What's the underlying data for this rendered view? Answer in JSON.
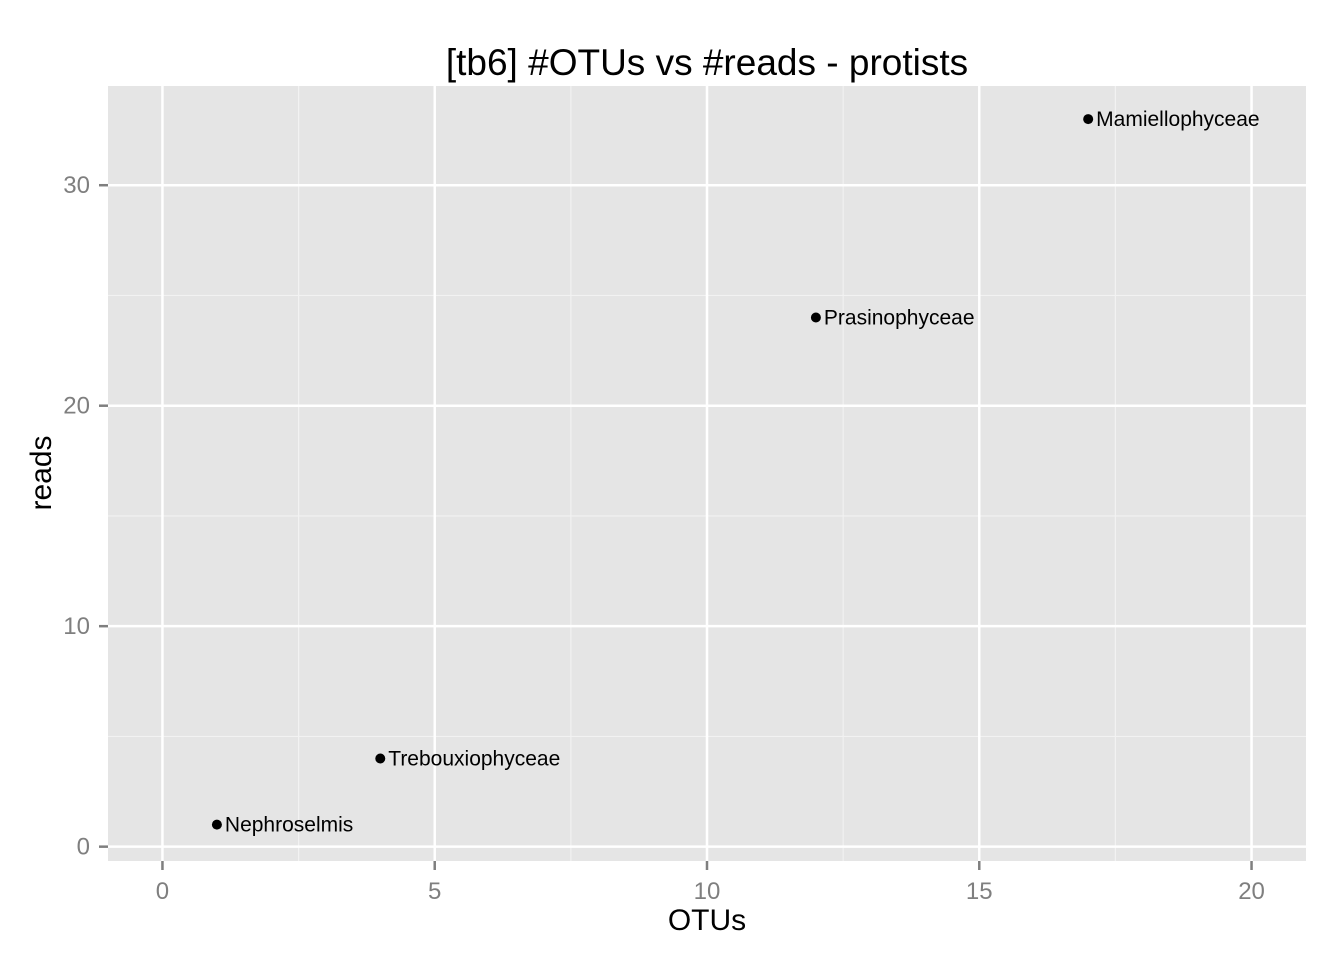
{
  "chart_data": {
    "type": "scatter",
    "title": "[tb6] #OTUs vs #reads - protists",
    "xlabel": "OTUs",
    "ylabel": "reads",
    "xlim": [
      -1,
      21
    ],
    "ylim": [
      -0.65,
      34.5
    ],
    "x_ticks": [
      0,
      5,
      10,
      15,
      20
    ],
    "y_ticks": [
      0,
      10,
      20,
      30
    ],
    "x_tick_labels": [
      "0",
      "5",
      "10",
      "15",
      "20"
    ],
    "y_tick_labels": [
      "0",
      "10",
      "20",
      "30"
    ],
    "grid": true,
    "panel_color": "#e5e5e5",
    "grid_color": "#ffffff",
    "point_color": "#000000",
    "points": [
      {
        "label": "Nephroselmis",
        "x": 1,
        "y": 1
      },
      {
        "label": "Trebouxiophyceae",
        "x": 4,
        "y": 4
      },
      {
        "label": "Prasinophyceae",
        "x": 12,
        "y": 24
      },
      {
        "label": "Mamiellophyceae",
        "x": 17,
        "y": 33
      }
    ]
  }
}
